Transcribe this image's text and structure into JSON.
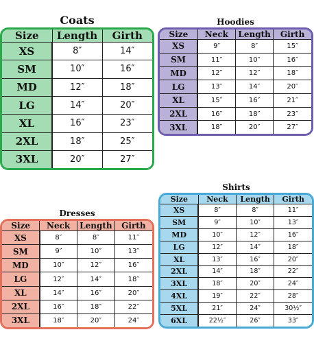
{
  "coats": {
    "title": "Coats",
    "columns": [
      "Size",
      "Length",
      "Girth"
    ],
    "rows": [
      [
        "XS",
        "8″",
        "14″"
      ],
      [
        "SM",
        "10″",
        "16″"
      ],
      [
        "MD",
        "12″",
        "18″"
      ],
      [
        "LG",
        "14″",
        "20″"
      ],
      [
        "XL",
        "16″",
        "23″"
      ],
      [
        "2XL",
        "18″",
        "25″"
      ],
      [
        "3XL",
        "20″",
        "27″"
      ]
    ]
  },
  "hoodies": {
    "title": "Hoodies",
    "columns": [
      "Size",
      "Neck",
      "Length",
      "Girth"
    ],
    "rows": [
      [
        "XS",
        "9″",
        "8″",
        "15″"
      ],
      [
        "SM",
        "11″",
        "10″",
        "16″"
      ],
      [
        "MD",
        "12″",
        "12″",
        "18″"
      ],
      [
        "LG",
        "13″",
        "14″",
        "20″"
      ],
      [
        "XL",
        "15″",
        "16″",
        "21″"
      ],
      [
        "2XL",
        "16″",
        "18″",
        "23″"
      ],
      [
        "3XL",
        "18″",
        "20″",
        "27″"
      ]
    ]
  },
  "dresses": {
    "title": "Dresses",
    "columns": [
      "Size",
      "Neck",
      "Length",
      "Girth"
    ],
    "rows": [
      [
        "XS",
        "8″",
        "8″",
        "11″"
      ],
      [
        "SM",
        "9″",
        "10″",
        "13″"
      ],
      [
        "MD",
        "10″",
        "12″",
        "16″"
      ],
      [
        "LG",
        "12″",
        "14″",
        "18″"
      ],
      [
        "XL",
        "14″",
        "16″",
        "20″"
      ],
      [
        "2XL",
        "16″",
        "18″",
        "22″"
      ],
      [
        "3XL",
        "18″",
        "20″",
        "24″"
      ]
    ]
  },
  "shirts": {
    "title": "Shirts",
    "columns": [
      "Size",
      "Neck",
      "Length",
      "Girth"
    ],
    "rows": [
      [
        "XS",
        "8″",
        "8″",
        "11″"
      ],
      [
        "SM",
        "9″",
        "10″",
        "13″"
      ],
      [
        "MD",
        "10″",
        "12″",
        "16″"
      ],
      [
        "LG",
        "12″",
        "14″",
        "18″"
      ],
      [
        "XL",
        "13″",
        "16″",
        "20″"
      ],
      [
        "2XL",
        "14″",
        "18″",
        "22″"
      ],
      [
        "3XL",
        "18″",
        "20″",
        "24″"
      ],
      [
        "4XL",
        "19″",
        "22″",
        "28″"
      ],
      [
        "5XL",
        "21″",
        "24″",
        "30½″"
      ],
      [
        "6XL",
        "22½″",
        "26″",
        "33″"
      ]
    ]
  },
  "colors": {
    "coats": "#2aa94c",
    "hoodies": "#6d5dac",
    "dresses": "#e4705b",
    "shirts": "#49a9d6"
  }
}
